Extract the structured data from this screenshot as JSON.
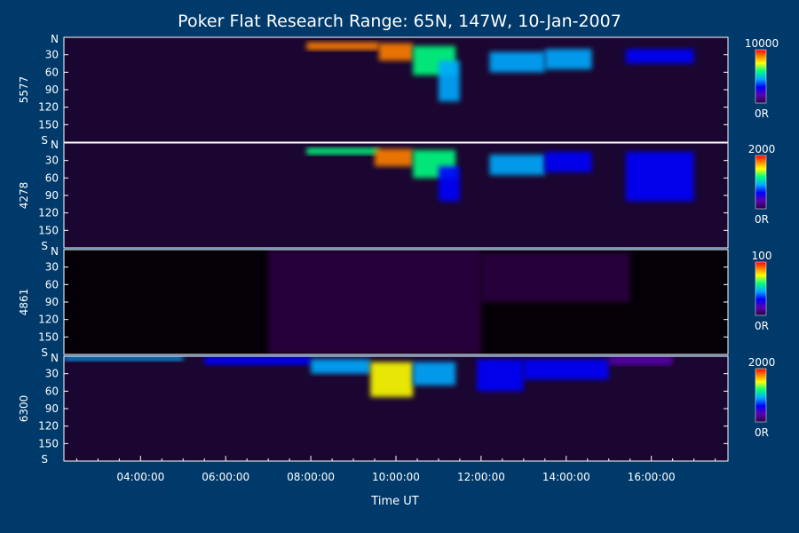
{
  "chart_data": {
    "type": "heatmap",
    "title": "Poker Flat Research Range: 65N, 147W, 10-Jan-2007",
    "xlabel": "Time UT",
    "x_ticks": [
      "04:00:00",
      "06:00:00",
      "08:00:00",
      "10:00:00",
      "12:00:00",
      "14:00:00",
      "16:00:00"
    ],
    "x_tick_hours": [
      4,
      6,
      8,
      10,
      12,
      14,
      16
    ],
    "xlim_hours": [
      2.2,
      17.8
    ],
    "y_ticks": [
      "30",
      "60",
      "90",
      "120",
      "150"
    ],
    "y_tick_values": [
      30,
      60,
      90,
      120,
      150
    ],
    "ylim": [
      0,
      180
    ],
    "y_top_label": "N",
    "y_bottom_label": "S",
    "colorbar_min_label": "0R",
    "panels": [
      {
        "ylabel": "5577",
        "colorbar_max": "10000",
        "features": [
          {
            "t0": 7.9,
            "t1": 9.6,
            "el": [
              8,
              22
            ],
            "level": 0.9
          },
          {
            "t0": 9.6,
            "t1": 10.4,
            "el": [
              10,
              40
            ],
            "level": 0.95
          },
          {
            "t0": 10.4,
            "t1": 11.4,
            "el": [
              15,
              65
            ],
            "level": 0.6
          },
          {
            "t0": 11.0,
            "t1": 11.5,
            "el": [
              40,
              110
            ],
            "level": 0.45
          },
          {
            "t0": 12.2,
            "t1": 13.5,
            "el": [
              25,
              60
            ],
            "level": 0.5
          },
          {
            "t0": 13.5,
            "t1": 14.6,
            "el": [
              20,
              55
            ],
            "level": 0.45
          },
          {
            "t0": 15.4,
            "t1": 17.0,
            "el": [
              20,
              45
            ],
            "level": 0.35
          }
        ]
      },
      {
        "ylabel": "4278",
        "colorbar_max": "2000",
        "features": [
          {
            "t0": 7.9,
            "t1": 9.6,
            "el": [
              8,
              20
            ],
            "level": 0.6
          },
          {
            "t0": 9.5,
            "t1": 10.4,
            "el": [
              10,
              40
            ],
            "level": 0.95
          },
          {
            "t0": 10.4,
            "t1": 11.4,
            "el": [
              12,
              60
            ],
            "level": 0.6
          },
          {
            "t0": 11.0,
            "t1": 11.5,
            "el": [
              40,
              100
            ],
            "level": 0.4
          },
          {
            "t0": 12.2,
            "t1": 13.5,
            "el": [
              20,
              55
            ],
            "level": 0.45
          },
          {
            "t0": 13.5,
            "t1": 14.6,
            "el": [
              15,
              50
            ],
            "level": 0.4
          },
          {
            "t0": 15.4,
            "t1": 17.0,
            "el": [
              15,
              100
            ],
            "level": 0.35
          }
        ]
      },
      {
        "ylabel": "4861",
        "colorbar_max": "100",
        "features": [
          {
            "t0": 7.0,
            "t1": 12.0,
            "el": [
              0,
              180
            ],
            "level": 0.08
          },
          {
            "t0": 12.0,
            "t1": 15.5,
            "el": [
              5,
              90
            ],
            "level": 0.12
          }
        ]
      },
      {
        "ylabel": "6300",
        "colorbar_max": "2000",
        "features": [
          {
            "t0": 2.2,
            "t1": 5.0,
            "el": [
              0,
              8
            ],
            "level": 0.45
          },
          {
            "t0": 5.5,
            "t1": 8.0,
            "el": [
              0,
              15
            ],
            "level": 0.35
          },
          {
            "t0": 8.0,
            "t1": 9.4,
            "el": [
              5,
              30
            ],
            "level": 0.5
          },
          {
            "t0": 9.4,
            "t1": 10.4,
            "el": [
              10,
              70
            ],
            "level": 0.75
          },
          {
            "t0": 10.4,
            "t1": 11.4,
            "el": [
              10,
              50
            ],
            "level": 0.55
          },
          {
            "t0": 11.9,
            "t1": 13.0,
            "el": [
              5,
              60
            ],
            "level": 0.4
          },
          {
            "t0": 13.0,
            "t1": 15.0,
            "el": [
              5,
              40
            ],
            "level": 0.3
          },
          {
            "t0": 15.0,
            "t1": 16.5,
            "el": [
              0,
              15
            ],
            "level": 0.25
          }
        ]
      }
    ]
  }
}
